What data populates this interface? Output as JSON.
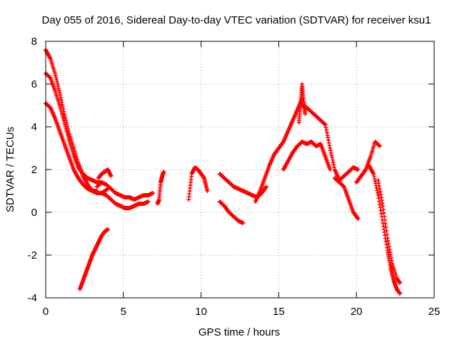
{
  "chart_data": {
    "type": "scatter",
    "title": "Day 055 of 2016, Sidereal Day-to-day VTEC variation (SDTVAR) for receiver ksu1",
    "xlabel": "GPS time / hours",
    "ylabel": "SDTVAR / TECUs",
    "xlim": [
      0,
      25
    ],
    "ylim": [
      -4,
      8
    ],
    "xticks": [
      0,
      5,
      10,
      15,
      20,
      25
    ],
    "yticks": [
      -4,
      -2,
      0,
      2,
      4,
      6,
      8
    ],
    "grid": true,
    "marker": "+",
    "color": "#ff0000",
    "segments": [
      {
        "name": "trace-a-main-decline",
        "x": [
          0.0,
          0.3,
          0.6,
          0.9,
          1.2,
          1.5,
          1.8,
          2.1,
          2.4,
          2.7,
          3.0,
          3.3,
          3.6,
          4.0
        ],
        "y": [
          7.6,
          7.2,
          6.5,
          5.6,
          4.6,
          3.7,
          3.0,
          2.3,
          1.7,
          1.3,
          1.0,
          0.9,
          0.9,
          1.1
        ]
      },
      {
        "name": "trace-b-lower-decline",
        "x": [
          0.0,
          0.3,
          0.6,
          0.9,
          1.2,
          1.5,
          1.8,
          2.1,
          2.4,
          2.7,
          3.0,
          3.3
        ],
        "y": [
          5.1,
          4.9,
          4.4,
          3.8,
          3.2,
          2.6,
          2.0,
          1.6,
          1.3,
          1.1,
          1.0,
          1.0
        ]
      },
      {
        "name": "trace-c-upper-decline",
        "x": [
          0.0,
          0.3,
          0.6,
          0.9,
          1.2,
          1.5,
          1.8,
          2.1,
          2.4,
          2.7,
          3.0,
          3.3,
          3.6
        ],
        "y": [
          6.5,
          6.3,
          5.7,
          5.0,
          4.2,
          3.4,
          2.7,
          2.1,
          1.8,
          1.6,
          1.5,
          1.4,
          1.4
        ]
      },
      {
        "name": "trace-d-flat-band",
        "x": [
          3.3,
          3.6,
          3.9,
          4.2,
          4.5,
          4.8,
          5.1,
          5.4,
          5.7,
          6.0,
          6.3,
          6.6,
          6.9
        ],
        "y": [
          1.2,
          1.4,
          1.3,
          1.1,
          0.9,
          0.8,
          0.7,
          0.7,
          0.6,
          0.7,
          0.8,
          0.8,
          0.9
        ]
      },
      {
        "name": "trace-e-low-band",
        "x": [
          3.6,
          3.9,
          4.2,
          4.5,
          4.8,
          5.1,
          5.4,
          5.7,
          6.0,
          6.3,
          6.6
        ],
        "y": [
          0.9,
          0.8,
          0.6,
          0.4,
          0.3,
          0.2,
          0.2,
          0.3,
          0.4,
          0.4,
          0.5
        ]
      },
      {
        "name": "trace-f-bump",
        "x": [
          3.4,
          3.6,
          3.8,
          4.0,
          4.2
        ],
        "y": [
          1.6,
          1.8,
          1.9,
          2.0,
          1.7
        ]
      },
      {
        "name": "trace-g-negative-rise",
        "x": [
          2.2,
          2.4,
          2.6,
          2.8,
          3.0,
          3.2,
          3.4,
          3.6,
          3.8,
          4.0
        ],
        "y": [
          -3.6,
          -3.2,
          -2.8,
          -2.4,
          -2.0,
          -1.7,
          -1.4,
          -1.1,
          -0.9,
          -0.8
        ]
      },
      {
        "name": "trace-h-seven-hours",
        "x": [
          7.2,
          7.3,
          7.4,
          7.5,
          7.6
        ],
        "y": [
          0.4,
          0.6,
          1.4,
          1.7,
          1.9
        ]
      },
      {
        "name": "trace-i-nine-hours",
        "x": [
          9.2,
          9.4,
          9.6,
          9.8,
          10.0,
          10.2,
          10.4
        ],
        "y": [
          0.6,
          1.8,
          2.1,
          2.0,
          1.8,
          1.6,
          1.0
        ]
      },
      {
        "name": "trace-j-post-eleven",
        "x": [
          11.2,
          11.5,
          11.8,
          12.1,
          12.4,
          12.7,
          13.0,
          13.3,
          13.6,
          13.9,
          14.2
        ],
        "y": [
          1.8,
          1.6,
          1.4,
          1.2,
          1.1,
          1.0,
          0.9,
          0.8,
          0.7,
          0.9,
          1.2
        ]
      },
      {
        "name": "trace-k-low-eleven",
        "x": [
          11.2,
          11.5,
          11.8,
          12.1,
          12.4,
          12.7
        ],
        "y": [
          0.5,
          0.3,
          0.0,
          -0.2,
          -0.4,
          -0.5
        ]
      },
      {
        "name": "trace-l-rise-to-peak",
        "x": [
          13.5,
          13.8,
          14.1,
          14.4,
          14.7,
          15.0,
          15.3,
          15.6,
          15.9,
          16.2,
          16.5
        ],
        "y": [
          0.5,
          1.0,
          1.6,
          2.2,
          2.7,
          3.0,
          3.3,
          3.8,
          4.3,
          4.8,
          5.3
        ]
      },
      {
        "name": "trace-m-peak-spike",
        "x": [
          16.3,
          16.4,
          16.5,
          16.6,
          16.7
        ],
        "y": [
          4.2,
          5.1,
          6.0,
          5.2,
          4.6
        ]
      },
      {
        "name": "trace-n-post-peak",
        "x": [
          16.5,
          16.8,
          17.1,
          17.4,
          17.7,
          18.0,
          18.3,
          18.6,
          18.9,
          19.2,
          19.5,
          19.8,
          20.1
        ],
        "y": [
          5.0,
          4.9,
          4.7,
          4.5,
          4.3,
          4.1,
          3.0,
          2.0,
          1.5,
          1.7,
          1.9,
          2.1,
          2.0
        ]
      },
      {
        "name": "trace-o-lower-plateau",
        "x": [
          15.3,
          15.6,
          15.9,
          16.2,
          16.5,
          16.8,
          17.1,
          17.4,
          17.7,
          18.0,
          18.3
        ],
        "y": [
          2.0,
          2.4,
          2.8,
          3.1,
          3.3,
          3.2,
          3.3,
          3.1,
          3.2,
          2.6,
          2.0
        ]
      },
      {
        "name": "trace-p-dip-branch",
        "x": [
          18.6,
          18.9,
          19.2,
          19.5,
          19.8,
          20.1
        ],
        "y": [
          1.6,
          1.4,
          1.2,
          0.6,
          0.0,
          -0.3
        ]
      },
      {
        "name": "trace-q-twenty-hump",
        "x": [
          20.0,
          20.3,
          20.6,
          20.9,
          21.2,
          21.5
        ],
        "y": [
          1.4,
          1.7,
          2.0,
          2.6,
          3.3,
          3.1
        ]
      },
      {
        "name": "trace-r-final-drop",
        "x": [
          20.8,
          21.1,
          21.4,
          21.7,
          22.0,
          22.2,
          22.4,
          22.6,
          22.8
        ],
        "y": [
          2.2,
          1.8,
          0.8,
          -0.5,
          -1.8,
          -2.6,
          -3.2,
          -3.6,
          -3.8
        ]
      },
      {
        "name": "trace-s-final-drop-2",
        "x": [
          21.4,
          21.7,
          22.0,
          22.3,
          22.6,
          22.8
        ],
        "y": [
          1.5,
          0.3,
          -1.2,
          -2.4,
          -3.1,
          -3.3
        ]
      }
    ]
  }
}
